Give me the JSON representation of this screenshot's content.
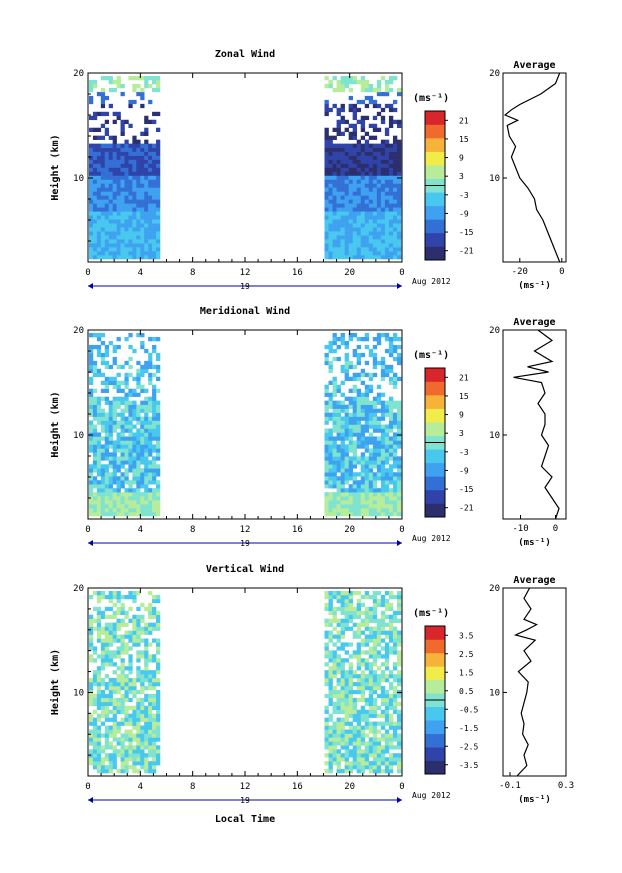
{
  "figure": {
    "x_label": "Local Time",
    "date_label": "Aug 2012",
    "day_label": "19",
    "x_ticks": [
      "0",
      "4",
      "8",
      "12",
      "16",
      "20",
      "0"
    ],
    "y_label": "Height (km)",
    "y_ticks": [
      "20",
      "10"
    ],
    "cbar_unit": "(ms⁻¹)",
    "avg_unit": "(ms⁻¹)",
    "colors": {
      "colormap": [
        "#2b2f6e",
        "#2f43a8",
        "#3270d6",
        "#3ea2f0",
        "#48c8ee",
        "#7fe3d0",
        "#b6ec9a",
        "#f2ec4a",
        "#f7b23a",
        "#f06a2e",
        "#d8262a"
      ],
      "axis": "#000000",
      "tick_blue": "#0000aa"
    }
  },
  "chart_data": [
    {
      "type": "heatmap",
      "title": "Zonal Wind",
      "x_range_hours": [
        0,
        24
      ],
      "y_range_km": [
        2,
        20
      ],
      "data_gap_hours": [
        5.5,
        18.0
      ],
      "colorbar_ticks": [
        "21",
        "15",
        "9",
        "3",
        "-3",
        "-9",
        "-15",
        "-21"
      ],
      "colorbar_range": [
        -24,
        24
      ],
      "profile": {
        "title": "Average",
        "x_ticks": [
          "-20",
          "0"
        ],
        "x_range": [
          -28,
          2
        ],
        "y_ticks": [
          "20",
          "10"
        ],
        "height_km": [
          2,
          3,
          4,
          5,
          6,
          7,
          8,
          9,
          10,
          11,
          12,
          13,
          14,
          15,
          15.5,
          16,
          16.5,
          17,
          18,
          19,
          20
        ],
        "values": [
          -1,
          -3,
          -5,
          -7,
          -9,
          -12,
          -13,
          -16,
          -20,
          -22,
          -24,
          -22,
          -25,
          -26,
          -21,
          -27,
          -24,
          -20,
          -10,
          -3,
          -1
        ]
      }
    },
    {
      "type": "heatmap",
      "title": "Meridional Wind",
      "x_range_hours": [
        0,
        24
      ],
      "y_range_km": [
        2,
        20
      ],
      "data_gap_hours": [
        5.5,
        18.0
      ],
      "colorbar_ticks": [
        "21",
        "15",
        "9",
        "3",
        "-3",
        "-9",
        "-15",
        "-21"
      ],
      "colorbar_range": [
        -24,
        24
      ],
      "profile": {
        "title": "Average",
        "x_ticks": [
          "-10",
          "0"
        ],
        "x_range": [
          -15,
          3
        ],
        "y_ticks": [
          "20",
          "10"
        ],
        "height_km": [
          2,
          3,
          4,
          5,
          6,
          7,
          8,
          9,
          10,
          11,
          12,
          13,
          14,
          15,
          15.5,
          16,
          16.5,
          17,
          18,
          19,
          20
        ],
        "values": [
          0,
          1,
          -1,
          -3,
          -1,
          -4,
          -3,
          -2,
          -4,
          -3,
          -3,
          -5,
          -3,
          -4,
          -12,
          -2,
          -8,
          -1,
          -6,
          -1,
          -5
        ]
      }
    },
    {
      "type": "heatmap",
      "title": "Vertical Wind",
      "x_range_hours": [
        0,
        24
      ],
      "y_range_km": [
        2,
        20
      ],
      "data_gap_hours": [
        5.5,
        18.0
      ],
      "colorbar_ticks": [
        "3.5",
        "2.5",
        "1.5",
        "0.5",
        "-0.5",
        "-1.5",
        "-2.5",
        "-3.5"
      ],
      "colorbar_range": [
        -4,
        4
      ],
      "profile": {
        "title": "Average",
        "x_ticks": [
          "-0.1",
          "0.3"
        ],
        "x_range": [
          -0.15,
          0.3
        ],
        "y_ticks": [
          "20",
          "10"
        ],
        "height_km": [
          2,
          3,
          4,
          5,
          6,
          7,
          8,
          9,
          10,
          11,
          12,
          13,
          14,
          15,
          15.5,
          16,
          16.5,
          17,
          18,
          19,
          20
        ],
        "values": [
          -0.05,
          0.02,
          0.0,
          0.03,
          -0.01,
          0.0,
          -0.02,
          0.0,
          0.02,
          0.03,
          -0.04,
          0.05,
          0.0,
          0.08,
          -0.06,
          0.02,
          0.09,
          0.0,
          0.05,
          0.0,
          0.04
        ]
      }
    }
  ]
}
